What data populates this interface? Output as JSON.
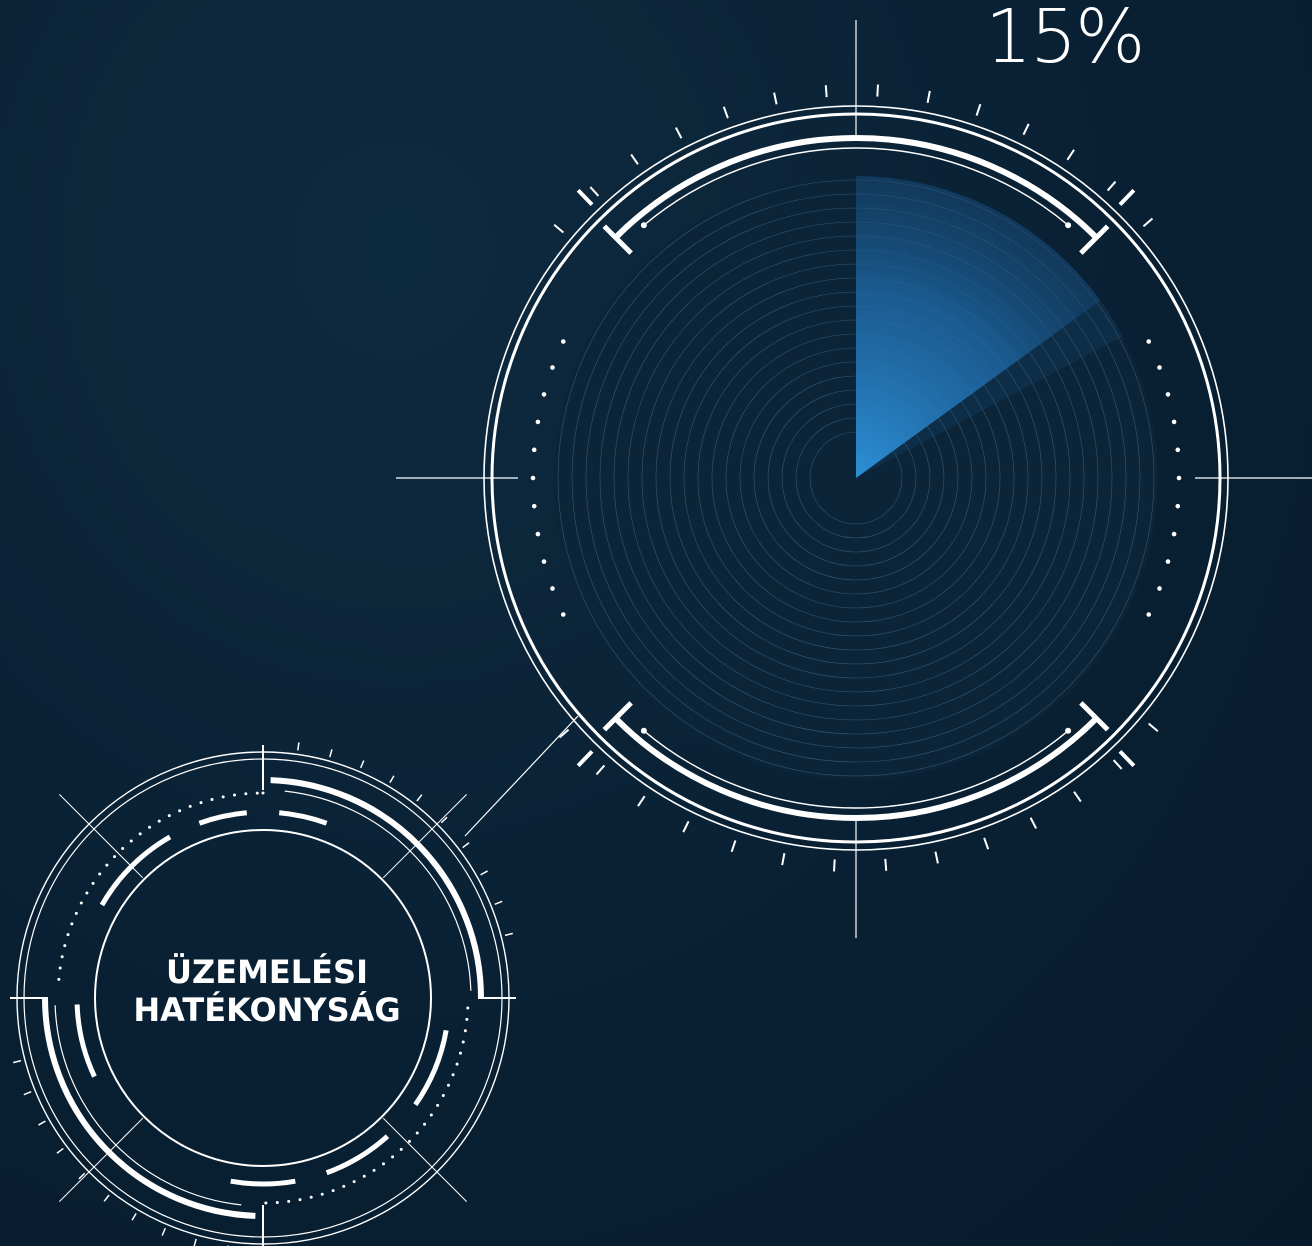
{
  "gauge": {
    "percent_label": "15%",
    "value_fraction": 0.15,
    "accent_color": "#2d8fd6"
  },
  "label": {
    "line1": "ÜZEMELÉSI",
    "line2": "HATÉKONYSÁG"
  },
  "colors": {
    "background": "#0a2236",
    "stroke": "#ffffff"
  }
}
